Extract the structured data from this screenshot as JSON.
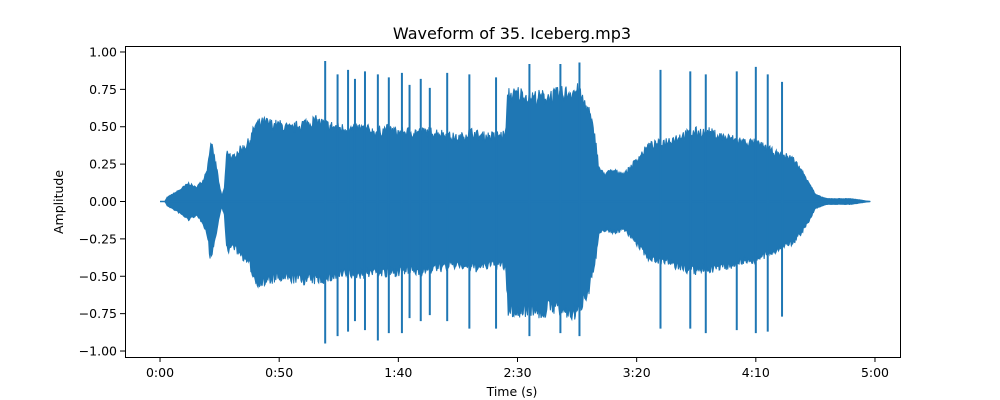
{
  "chart_data": {
    "type": "line",
    "title": "Waveform of 35. Iceberg.mp3",
    "xlabel": "Time (s)",
    "ylabel": "Amplitude",
    "xlim": [
      -14.7,
      310.5
    ],
    "ylim": [
      -1.04,
      1.04
    ],
    "x_ticks": [
      0,
      50,
      100,
      150,
      200,
      250,
      300
    ],
    "x_tick_labels": [
      "0:00",
      "0:50",
      "1:40",
      "2:30",
      "3:20",
      "4:10",
      "5:00"
    ],
    "y_ticks": [
      -1.0,
      -0.75,
      -0.5,
      -0.25,
      0.0,
      0.25,
      0.5,
      0.75,
      1.0
    ],
    "y_tick_labels": [
      "−1.00",
      "−0.75",
      "−0.50",
      "−0.25",
      "0.00",
      "0.25",
      "0.50",
      "0.75",
      "1.00"
    ],
    "grid": false,
    "series": [
      {
        "color": "#1f77b4",
        "envelope": {
          "time": [
            0,
            2,
            3,
            5,
            8,
            12,
            15,
            18,
            20,
            21,
            22,
            23,
            24,
            25,
            26,
            27,
            28,
            29,
            30,
            32,
            34,
            36,
            38,
            40,
            44,
            48,
            50,
            55,
            60,
            65,
            70,
            75,
            80,
            85,
            90,
            95,
            100,
            105,
            110,
            115,
            120,
            125,
            130,
            135,
            140,
            145,
            146,
            148,
            150,
            155,
            160,
            165,
            170,
            175,
            180,
            183,
            184,
            186,
            190,
            195,
            200,
            205,
            210,
            215,
            220,
            225,
            230,
            235,
            240,
            245,
            250,
            255,
            260,
            265,
            268,
            270,
            272,
            275,
            278,
            280,
            285,
            290,
            298
          ],
          "upper": [
            0.0,
            0.0,
            0.03,
            0.05,
            0.08,
            0.13,
            0.1,
            0.15,
            0.25,
            0.4,
            0.38,
            0.3,
            0.22,
            0.1,
            0.04,
            0.1,
            0.35,
            0.36,
            0.3,
            0.35,
            0.38,
            0.4,
            0.45,
            0.55,
            0.57,
            0.55,
            0.55,
            0.52,
            0.56,
            0.58,
            0.55,
            0.53,
            0.52,
            0.53,
            0.5,
            0.52,
            0.5,
            0.5,
            0.5,
            0.5,
            0.48,
            0.45,
            0.5,
            0.47,
            0.47,
            0.48,
            0.78,
            0.76,
            0.78,
            0.75,
            0.75,
            0.76,
            0.78,
            0.8,
            0.65,
            0.42,
            0.25,
            0.2,
            0.22,
            0.2,
            0.3,
            0.4,
            0.42,
            0.45,
            0.48,
            0.5,
            0.5,
            0.47,
            0.45,
            0.43,
            0.42,
            0.38,
            0.33,
            0.32,
            0.25,
            0.2,
            0.15,
            0.05,
            0.03,
            0.02,
            0.02,
            0.02,
            0.0
          ],
          "lower": [
            0.0,
            0.0,
            -0.03,
            -0.05,
            -0.08,
            -0.13,
            -0.1,
            -0.15,
            -0.25,
            -0.4,
            -0.35,
            -0.28,
            -0.2,
            -0.09,
            -0.04,
            -0.1,
            -0.35,
            -0.36,
            -0.3,
            -0.35,
            -0.38,
            -0.42,
            -0.47,
            -0.57,
            -0.58,
            -0.55,
            -0.55,
            -0.55,
            -0.56,
            -0.56,
            -0.55,
            -0.53,
            -0.52,
            -0.52,
            -0.5,
            -0.52,
            -0.5,
            -0.5,
            -0.5,
            -0.48,
            -0.47,
            -0.45,
            -0.48,
            -0.47,
            -0.45,
            -0.47,
            -0.78,
            -0.78,
            -0.8,
            -0.76,
            -0.8,
            -0.75,
            -0.8,
            -0.8,
            -0.62,
            -0.4,
            -0.25,
            -0.2,
            -0.22,
            -0.2,
            -0.3,
            -0.4,
            -0.42,
            -0.45,
            -0.48,
            -0.5,
            -0.48,
            -0.47,
            -0.45,
            -0.42,
            -0.42,
            -0.38,
            -0.33,
            -0.3,
            -0.25,
            -0.2,
            -0.15,
            -0.05,
            -0.03,
            -0.02,
            -0.02,
            -0.02,
            0.0
          ]
        },
        "peaks": [
          {
            "t": 69.3,
            "hi": 0.94,
            "lo": -0.95
          },
          {
            "t": 74.5,
            "hi": 0.85,
            "lo": -0.9
          },
          {
            "t": 78.9,
            "hi": 0.88,
            "lo": -0.87
          },
          {
            "t": 81.8,
            "hi": 0.82,
            "lo": -0.8
          },
          {
            "t": 86.0,
            "hi": 0.87,
            "lo": -0.86
          },
          {
            "t": 91.4,
            "hi": 0.85,
            "lo": -0.93
          },
          {
            "t": 96.0,
            "hi": 0.83,
            "lo": -0.88
          },
          {
            "t": 101.5,
            "hi": 0.86,
            "lo": -0.88
          },
          {
            "t": 104.7,
            "hi": 0.78,
            "lo": -0.78
          },
          {
            "t": 109.4,
            "hi": 0.82,
            "lo": -0.8
          },
          {
            "t": 113.2,
            "hi": 0.76,
            "lo": -0.76
          },
          {
            "t": 120.5,
            "hi": 0.86,
            "lo": -0.8
          },
          {
            "t": 129.8,
            "hi": 0.85,
            "lo": -0.85
          },
          {
            "t": 141.0,
            "hi": 0.83,
            "lo": -0.85
          },
          {
            "t": 155.0,
            "hi": 0.92,
            "lo": -0.9
          },
          {
            "t": 168.0,
            "hi": 0.92,
            "lo": -0.88
          },
          {
            "t": 176.0,
            "hi": 0.93,
            "lo": -0.9
          },
          {
            "t": 210.0,
            "hi": 0.88,
            "lo": -0.85
          },
          {
            "t": 222.5,
            "hi": 0.87,
            "lo": -0.85
          },
          {
            "t": 229.0,
            "hi": 0.85,
            "lo": -0.88
          },
          {
            "t": 242.0,
            "hi": 0.87,
            "lo": -0.86
          },
          {
            "t": 250.0,
            "hi": 0.9,
            "lo": -0.88
          },
          {
            "t": 255.0,
            "hi": 0.85,
            "lo": -0.87
          },
          {
            "t": 261.0,
            "hi": 0.8,
            "lo": -0.77
          }
        ]
      }
    ]
  }
}
